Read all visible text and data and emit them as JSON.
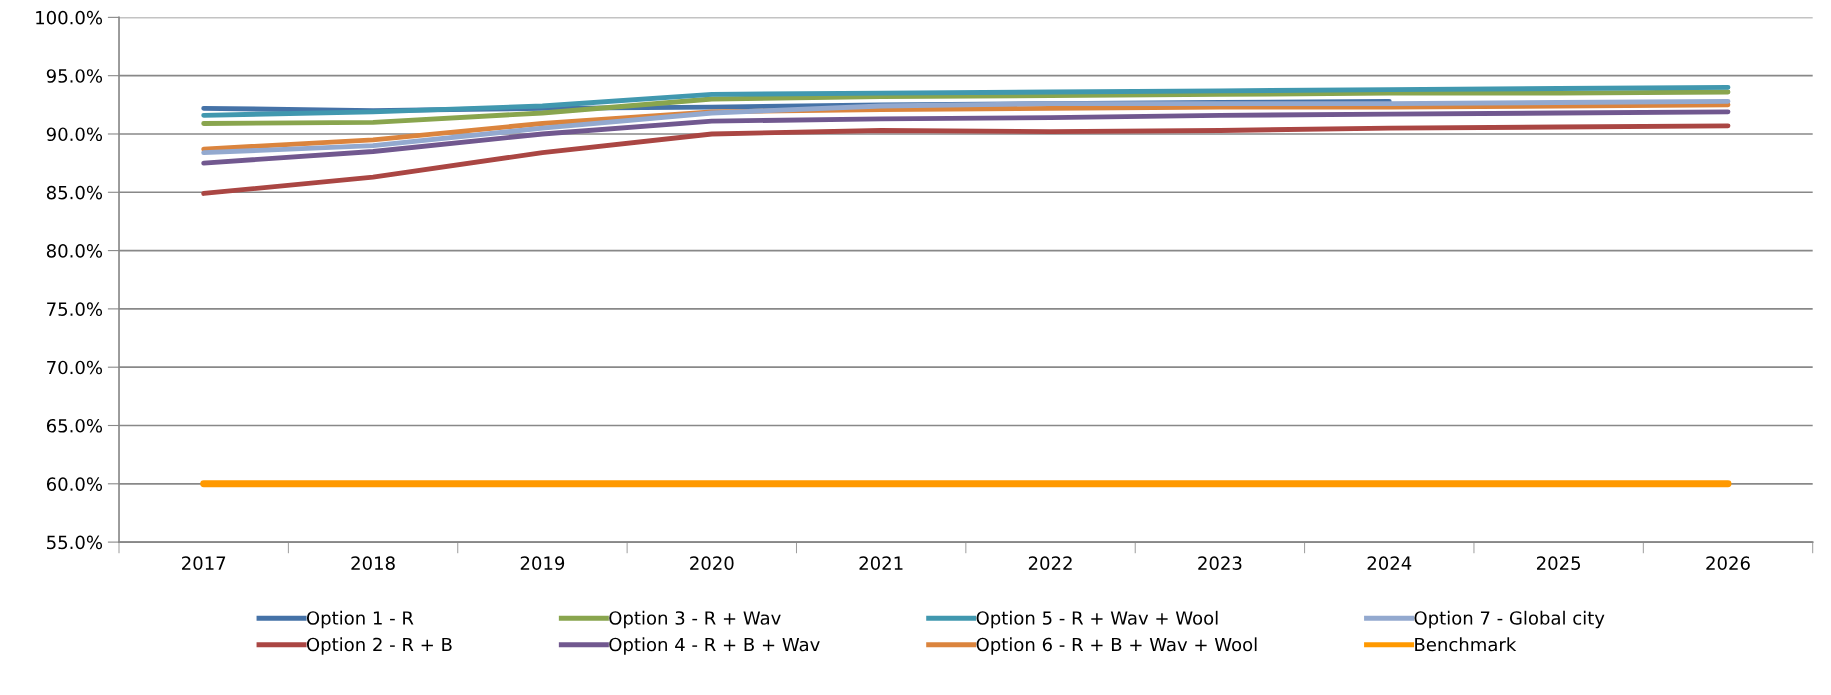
{
  "chart_data": {
    "type": "line",
    "categories": [
      "2017",
      "2018",
      "2019",
      "2020",
      "2021",
      "2022",
      "2023",
      "2024",
      "2025",
      "2026"
    ],
    "ylim": [
      55,
      100
    ],
    "yticks": [
      {
        "value": 55,
        "label": "55.0%"
      },
      {
        "value": 60,
        "label": "60.0%"
      },
      {
        "value": 65,
        "label": "65.0%"
      },
      {
        "value": 70,
        "label": "70.0%"
      },
      {
        "value": 75,
        "label": "75.0%"
      },
      {
        "value": 80,
        "label": "80.0%"
      },
      {
        "value": 85,
        "label": "85.0%"
      },
      {
        "value": 90,
        "label": "90.0%"
      },
      {
        "value": 95,
        "label": "95.0%"
      },
      {
        "value": 100,
        "label": "100.0%"
      }
    ],
    "grid": "y",
    "legend": "bottom",
    "marker": "none",
    "line_style": "solid",
    "series": [
      {
        "name": "Option 1 - R",
        "color": "#4572a7",
        "values": [
          92.2,
          92.0,
          92.2,
          92.3,
          92.5,
          92.6,
          92.7,
          92.8,
          null,
          null
        ]
      },
      {
        "name": "Option 2 - R + B",
        "color": "#aa4643",
        "values": [
          84.9,
          86.3,
          88.4,
          90.0,
          90.3,
          90.2,
          90.3,
          90.5,
          90.6,
          90.7
        ]
      },
      {
        "name": "Option 3 - R + Wav",
        "color": "#89a54e",
        "values": [
          90.9,
          91.0,
          91.8,
          93.0,
          93.2,
          93.3,
          93.4,
          93.5,
          93.5,
          93.6
        ]
      },
      {
        "name": "Option 4 - R + B + Wav",
        "color": "#71588f",
        "values": [
          87.5,
          88.5,
          90.0,
          91.1,
          91.3,
          91.4,
          91.6,
          91.7,
          91.8,
          91.9
        ]
      },
      {
        "name": "Option 5 - R + Wav + Wool",
        "color": "#4198af",
        "values": [
          91.6,
          91.9,
          92.4,
          93.4,
          93.5,
          93.6,
          93.7,
          93.8,
          93.9,
          94.0
        ]
      },
      {
        "name": "Option 6 - R + B + Wav + Wool",
        "color": "#db843d",
        "values": [
          88.7,
          89.5,
          90.9,
          91.9,
          92.1,
          92.2,
          92.3,
          92.3,
          92.4,
          92.5
        ]
      },
      {
        "name": "Option 7 - Global city",
        "color": "#93a9cf",
        "values": [
          88.4,
          89.0,
          90.5,
          91.8,
          92.4,
          92.6,
          92.6,
          92.6,
          92.7,
          92.8
        ]
      },
      {
        "name": "Benchmark",
        "color": "#ff9900",
        "values": [
          60,
          60,
          60,
          60,
          60,
          60,
          60,
          60,
          60,
          60
        ]
      }
    ]
  }
}
